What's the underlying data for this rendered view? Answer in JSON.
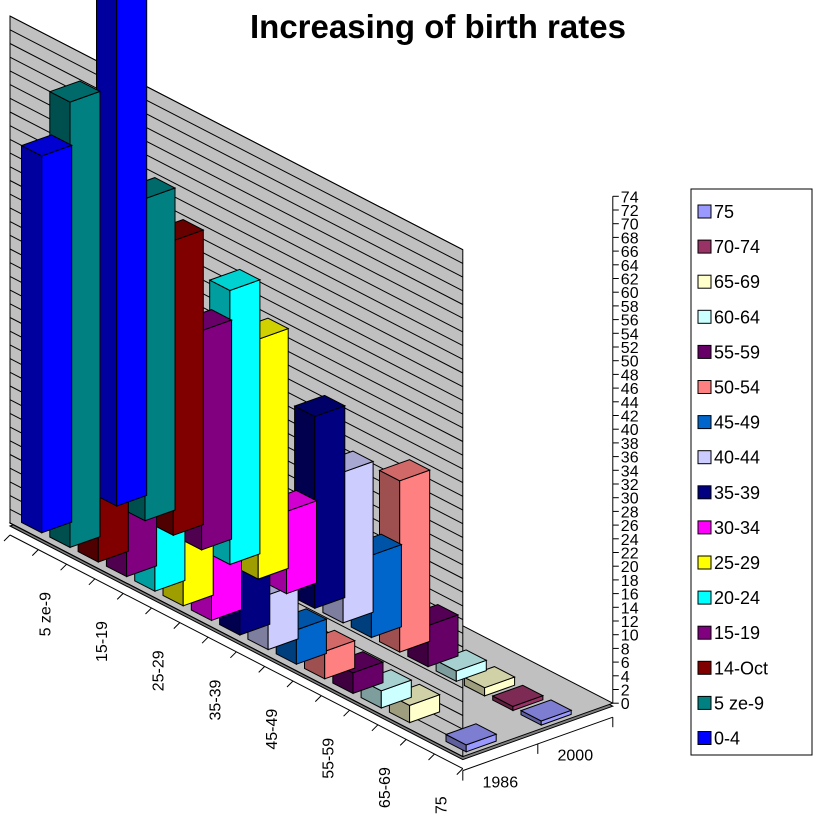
{
  "chart_data": {
    "type": "bar",
    "title": "Increasing of birth rates",
    "projection": "3d",
    "z_categories": [
      "1986",
      "2000"
    ],
    "x_tick_labels": [
      "5 ze-9",
      "15-19",
      "25-29",
      "35-39",
      "45-49",
      "55-59",
      "65-69",
      "75"
    ],
    "yticks": [
      "0",
      "2",
      "4",
      "6",
      "8",
      "10",
      "12",
      "14",
      "16",
      "18",
      "20",
      "22",
      "24",
      "26",
      "28",
      "30",
      "32",
      "34",
      "36",
      "38",
      "40",
      "42",
      "44",
      "46",
      "48",
      "50",
      "52",
      "54",
      "56",
      "58",
      "60",
      "62",
      "64",
      "66",
      "68",
      "70",
      "72",
      "74"
    ],
    "ylim": [
      0,
      74
    ],
    "grid": true,
    "legend_position": "right",
    "series": [
      {
        "name": "0-4",
        "color": "#0000FF",
        "values": [
          55,
          74
        ]
      },
      {
        "name": "5 ze-9",
        "color": "#008080",
        "values": [
          65,
          47
        ]
      },
      {
        "name": "14-Oct",
        "color": "#800000",
        "values": [
          44,
          43
        ]
      },
      {
        "name": "15-19",
        "color": "#800080",
        "values": [
          46,
          32
        ]
      },
      {
        "name": "20-24",
        "color": "#00FFFF",
        "values": [
          35,
          40
        ]
      },
      {
        "name": "25-29",
        "color": "#FFFF00",
        "values": [
          28,
          35
        ]
      },
      {
        "name": "30-34",
        "color": "#FF00FF",
        "values": [
          22,
          12
        ]
      },
      {
        "name": "35-39",
        "color": "#000080",
        "values": [
          10,
          28
        ]
      },
      {
        "name": "40-44",
        "color": "#CCCCFF",
        "values": [
          8,
          22
        ]
      },
      {
        "name": "45-49",
        "color": "#0066CC",
        "values": [
          5,
          12
        ]
      },
      {
        "name": "50-54",
        "color": "#FF8080",
        "values": [
          4,
          25
        ]
      },
      {
        "name": "55-59",
        "color": "#660066",
        "values": [
          3,
          6
        ]
      },
      {
        "name": "60-64",
        "color": "#CCFFFF",
        "values": [
          2.5,
          1.5
        ]
      },
      {
        "name": "65-69",
        "color": "#FFFFCC",
        "values": [
          2.5,
          1.2
        ]
      },
      {
        "name": "70-74",
        "color": "#993366",
        "values": [
          0,
          0.6
        ]
      },
      {
        "name": "75",
        "color": "#9999FF",
        "values": [
          1,
          0.6
        ]
      }
    ]
  }
}
